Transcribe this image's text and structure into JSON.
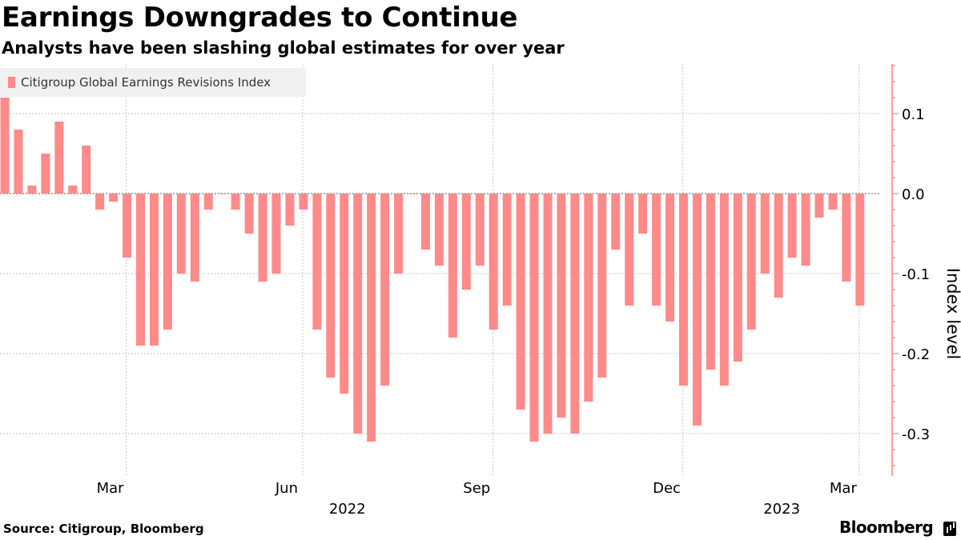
{
  "header": {
    "title": "Earnings Downgrades to Continue",
    "subtitle": "Analysts have been slashing global estimates for over year"
  },
  "footer": {
    "source": "Source: Citigroup, Bloomberg",
    "brand": "Bloomberg"
  },
  "colors": {
    "bar": "#ff8a8a",
    "axis_accent": "#ff8080",
    "grid": "#c8c8c8",
    "legend_bg": "#f0f0f0"
  },
  "chart_data": {
    "type": "bar",
    "legend_position": "top-left",
    "grid": true,
    "ylabel": "Index level",
    "ylim": [
      -0.35,
      0.16
    ],
    "yticks": [
      0.1,
      0.0,
      -0.1,
      -0.2,
      -0.3
    ],
    "ytick_labels": [
      "0.1",
      "0.0",
      "-0.1",
      "-0.2",
      "-0.3"
    ],
    "x_month_labels": [
      {
        "label": "Mar",
        "index": 8
      },
      {
        "label": "Jun",
        "index": 21
      },
      {
        "label": "Sep",
        "index": 35
      },
      {
        "label": "Dec",
        "index": 49
      },
      {
        "label": "Mar",
        "index": 62
      }
    ],
    "x_year_labels": [
      {
        "label": "2022",
        "index": 25
      },
      {
        "label": "2023",
        "index": 57
      }
    ],
    "series": [
      {
        "name": "Citigroup Global Earnings Revisions Index",
        "values": [
          0.12,
          0.08,
          0.01,
          0.05,
          0.09,
          0.01,
          0.06,
          -0.02,
          -0.01,
          -0.08,
          -0.19,
          -0.19,
          -0.17,
          -0.1,
          -0.11,
          -0.02,
          0.0,
          -0.02,
          -0.05,
          -0.11,
          -0.1,
          -0.04,
          -0.02,
          -0.17,
          -0.23,
          -0.25,
          -0.3,
          -0.31,
          -0.24,
          -0.1,
          0.0,
          -0.07,
          -0.09,
          -0.18,
          -0.12,
          -0.09,
          -0.17,
          -0.14,
          -0.27,
          -0.31,
          -0.3,
          -0.28,
          -0.3,
          -0.26,
          -0.23,
          -0.07,
          -0.14,
          -0.05,
          -0.14,
          -0.16,
          -0.24,
          -0.29,
          -0.22,
          -0.24,
          -0.21,
          -0.17,
          -0.1,
          -0.13,
          -0.08,
          -0.09,
          -0.03,
          -0.02,
          -0.11,
          -0.14
        ]
      }
    ]
  }
}
